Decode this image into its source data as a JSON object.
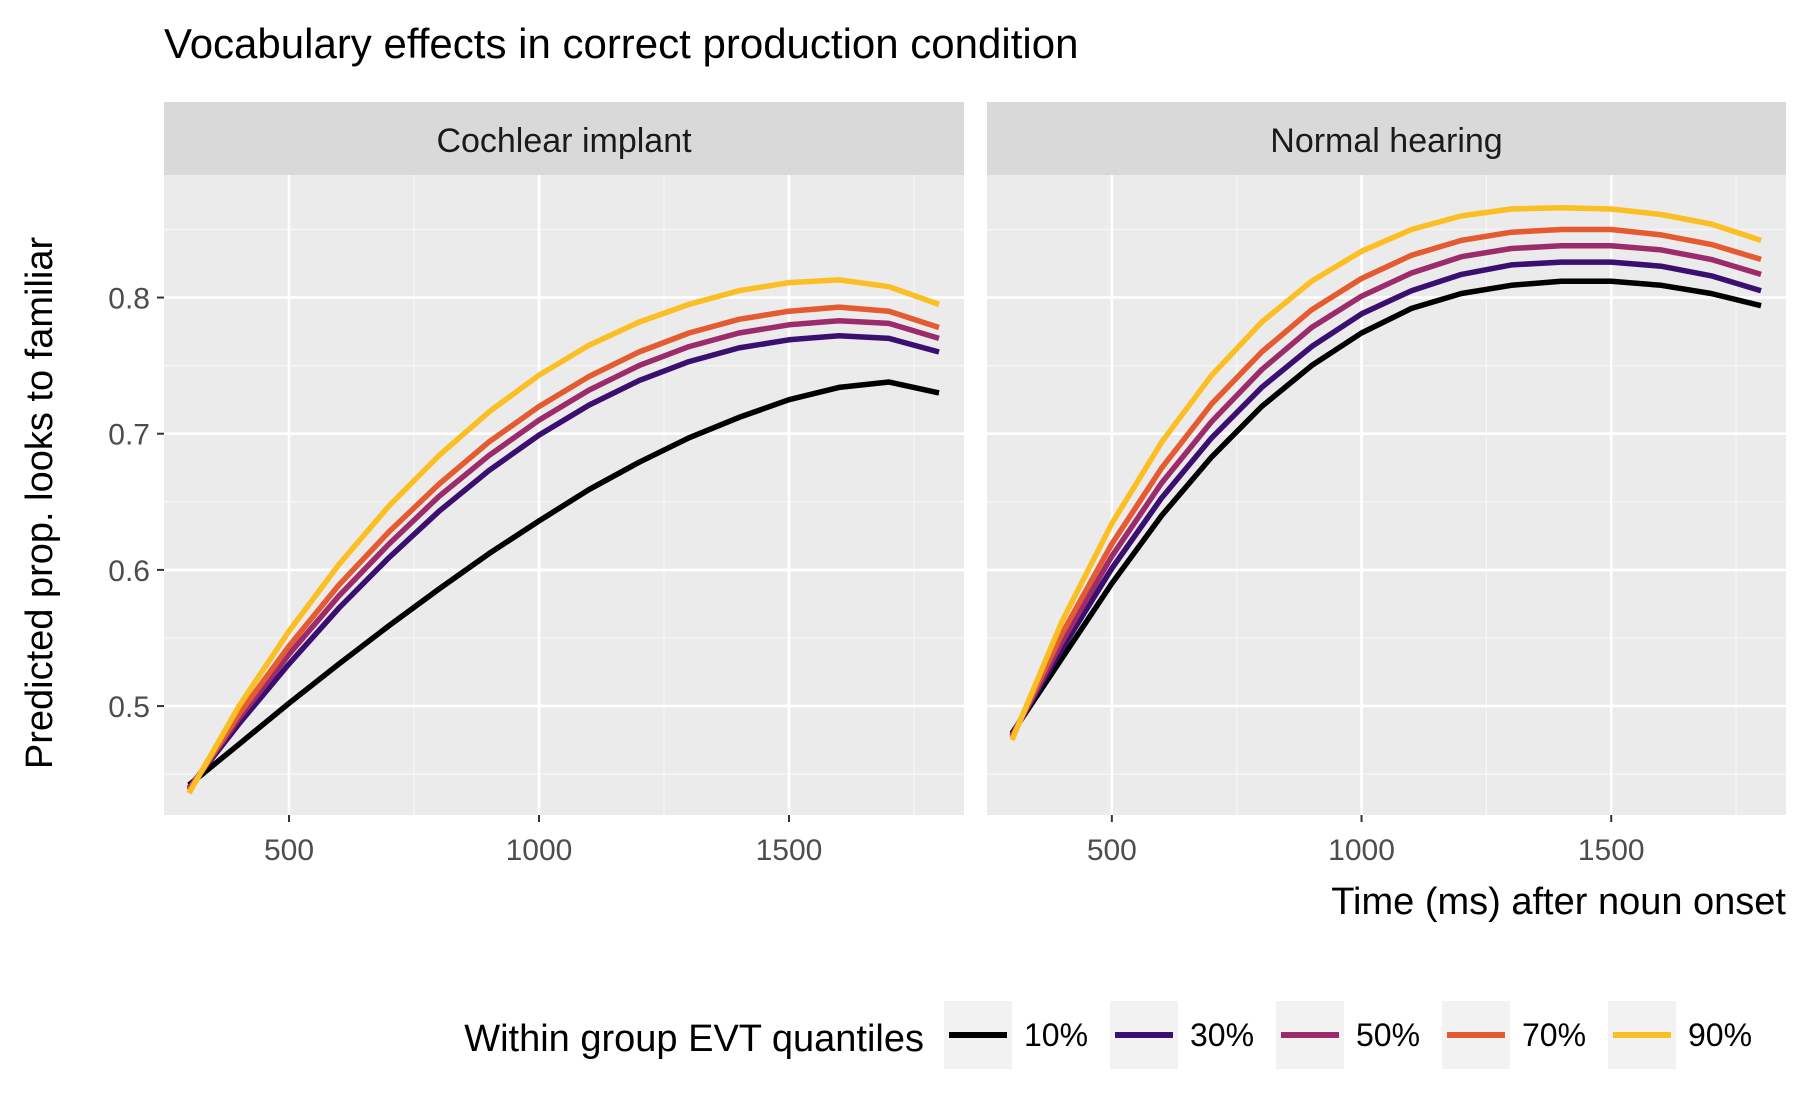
{
  "chart_data": {
    "type": "line",
    "title": "Vocabulary effects in correct production condition",
    "xlabel": "Time (ms) after noun onset",
    "ylabel": "Predicted prop. looks to familiar",
    "xlim": [
      250,
      1850
    ],
    "ylim": [
      0.42,
      0.89
    ],
    "x_ticks": [
      500,
      1000,
      1500
    ],
    "x_tick_labels": [
      "500",
      "1000",
      "1500"
    ],
    "y_ticks": [
      0.5,
      0.6,
      0.7,
      0.8
    ],
    "y_tick_labels": [
      "0.5",
      "0.6",
      "0.7",
      "0.8"
    ],
    "grid": true,
    "legend": {
      "title": "Within group EVT quantiles",
      "position": "bottom",
      "entries": [
        "10%",
        "30%",
        "50%",
        "70%",
        "90%"
      ]
    },
    "series_colors": {
      "10%": "#000000",
      "30%": "#3b0f70",
      "50%": "#9c2b6b",
      "70%": "#e45a31",
      "90%": "#fbbf24"
    },
    "x": [
      300,
      400,
      500,
      600,
      700,
      800,
      900,
      1000,
      1100,
      1200,
      1300,
      1400,
      1500,
      1600,
      1700,
      1800
    ],
    "panels": [
      {
        "name": "Cochlear implant",
        "series": [
          {
            "name": "10%",
            "values": [
              0.442,
              0.472,
              0.502,
              0.531,
              0.559,
              0.586,
              0.612,
              0.636,
              0.659,
              0.679,
              0.697,
              0.712,
              0.725,
              0.734,
              0.738,
              0.73
            ]
          },
          {
            "name": "30%",
            "values": [
              0.44,
              0.487,
              0.531,
              0.572,
              0.609,
              0.643,
              0.673,
              0.699,
              0.721,
              0.739,
              0.753,
              0.763,
              0.769,
              0.772,
              0.77,
              0.76
            ]
          },
          {
            "name": "50%",
            "values": [
              0.439,
              0.491,
              0.538,
              0.581,
              0.619,
              0.654,
              0.684,
              0.71,
              0.732,
              0.75,
              0.764,
              0.774,
              0.78,
              0.783,
              0.781,
              0.77
            ]
          },
          {
            "name": "70%",
            "values": [
              0.438,
              0.494,
              0.544,
              0.589,
              0.628,
              0.663,
              0.694,
              0.72,
              0.742,
              0.76,
              0.774,
              0.784,
              0.79,
              0.793,
              0.79,
              0.778
            ]
          },
          {
            "name": "90%",
            "values": [
              0.436,
              0.5,
              0.555,
              0.604,
              0.647,
              0.684,
              0.716,
              0.743,
              0.765,
              0.782,
              0.795,
              0.805,
              0.811,
              0.813,
              0.808,
              0.795
            ]
          }
        ]
      },
      {
        "name": "Normal hearing",
        "series": [
          {
            "name": "10%",
            "values": [
              0.48,
              0.535,
              0.59,
              0.64,
              0.683,
              0.72,
              0.75,
              0.774,
              0.792,
              0.803,
              0.809,
              0.812,
              0.812,
              0.809,
              0.803,
              0.794
            ]
          },
          {
            "name": "30%",
            "values": [
              0.479,
              0.542,
              0.601,
              0.653,
              0.697,
              0.734,
              0.764,
              0.788,
              0.805,
              0.817,
              0.824,
              0.826,
              0.826,
              0.823,
              0.816,
              0.805
            ]
          },
          {
            "name": "50%",
            "values": [
              0.478,
              0.547,
              0.61,
              0.664,
              0.709,
              0.747,
              0.778,
              0.801,
              0.818,
              0.83,
              0.836,
              0.838,
              0.838,
              0.835,
              0.828,
              0.817
            ]
          },
          {
            "name": "70%",
            "values": [
              0.477,
              0.553,
              0.619,
              0.675,
              0.722,
              0.76,
              0.791,
              0.814,
              0.831,
              0.842,
              0.848,
              0.85,
              0.85,
              0.846,
              0.839,
              0.828
            ]
          },
          {
            "name": "90%",
            "values": [
              0.475,
              0.562,
              0.634,
              0.694,
              0.743,
              0.782,
              0.812,
              0.834,
              0.85,
              0.86,
              0.865,
              0.866,
              0.865,
              0.861,
              0.854,
              0.842
            ]
          }
        ]
      }
    ]
  }
}
